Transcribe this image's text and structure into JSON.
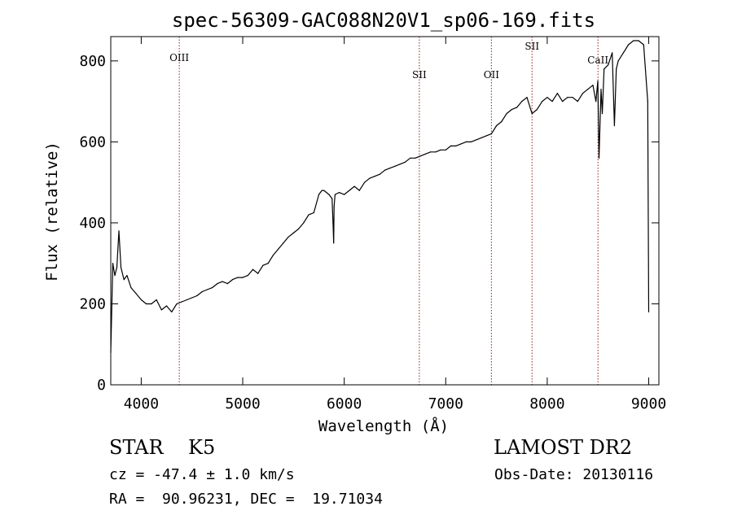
{
  "chart_data": {
    "type": "line",
    "title": "spec-56309-GAC088N20V1_sp06-169.fits",
    "xlabel": "Wavelength (Å)",
    "ylabel": "Flux (relative)",
    "xlim": [
      3700,
      9100
    ],
    "ylim": [
      0,
      860
    ],
    "xticks": [
      4000,
      5000,
      6000,
      7000,
      8000,
      9000
    ],
    "yticks": [
      0,
      200,
      400,
      600,
      800
    ],
    "grid": false,
    "series": [
      {
        "color": "#000000",
        "x": [
          3700,
          3720,
          3740,
          3760,
          3780,
          3800,
          3830,
          3860,
          3900,
          3950,
          4000,
          4050,
          4100,
          4150,
          4200,
          4250,
          4300,
          4350,
          4400,
          4450,
          4500,
          4550,
          4600,
          4650,
          4700,
          4750,
          4800,
          4850,
          4900,
          4950,
          5000,
          5050,
          5100,
          5150,
          5200,
          5250,
          5300,
          5350,
          5400,
          5450,
          5500,
          5550,
          5600,
          5650,
          5700,
          5750,
          5780,
          5800,
          5850,
          5880,
          5890,
          5896,
          5900,
          5910,
          5950,
          6000,
          6050,
          6100,
          6150,
          6200,
          6250,
          6300,
          6350,
          6400,
          6450,
          6500,
          6550,
          6600,
          6650,
          6700,
          6750,
          6800,
          6850,
          6900,
          6950,
          7000,
          7050,
          7100,
          7150,
          7200,
          7250,
          7300,
          7350,
          7400,
          7450,
          7500,
          7550,
          7600,
          7650,
          7700,
          7750,
          7800,
          7850,
          7900,
          7950,
          8000,
          8050,
          8100,
          8150,
          8200,
          8250,
          8300,
          8350,
          8400,
          8450,
          8480,
          8498,
          8510,
          8530,
          8542,
          8560,
          8600,
          8640,
          8662,
          8680,
          8700,
          8750,
          8800,
          8850,
          8900,
          8950,
          8990,
          9000
        ],
        "y": [
          80,
          300,
          270,
          290,
          380,
          290,
          260,
          270,
          240,
          225,
          210,
          200,
          200,
          210,
          185,
          195,
          180,
          200,
          205,
          210,
          215,
          220,
          230,
          235,
          240,
          250,
          255,
          250,
          260,
          265,
          265,
          270,
          285,
          275,
          295,
          300,
          320,
          335,
          350,
          365,
          375,
          385,
          400,
          420,
          425,
          470,
          480,
          480,
          470,
          460,
          400,
          350,
          440,
          470,
          475,
          470,
          480,
          490,
          480,
          500,
          510,
          515,
          520,
          530,
          535,
          540,
          545,
          550,
          560,
          560,
          565,
          570,
          575,
          575,
          580,
          580,
          590,
          590,
          595,
          600,
          600,
          605,
          610,
          615,
          620,
          640,
          650,
          670,
          680,
          685,
          700,
          710,
          670,
          680,
          700,
          710,
          700,
          720,
          700,
          710,
          710,
          700,
          720,
          730,
          740,
          700,
          750,
          560,
          730,
          670,
          780,
          790,
          820,
          640,
          780,
          800,
          820,
          840,
          850,
          850,
          840,
          700,
          180
        ]
      }
    ],
    "annotations": [
      {
        "label": "OIII",
        "x": 4375
      },
      {
        "label": "SII",
        "x": 6740
      },
      {
        "label": "OII",
        "x": 7450
      },
      {
        "label": "SII",
        "x": 7850
      },
      {
        "label": "CaII",
        "x": 8500
      }
    ],
    "annotation_color": "#9b1b1b"
  },
  "footer": {
    "object_class": "STAR    K5",
    "survey": "LAMOST DR2",
    "redshift": "cz = -47.4 ± 1.0 km/s",
    "obs_date": "Obs-Date: 20130116",
    "coordinates": "RA =  90.96231, DEC =  19.71034"
  }
}
